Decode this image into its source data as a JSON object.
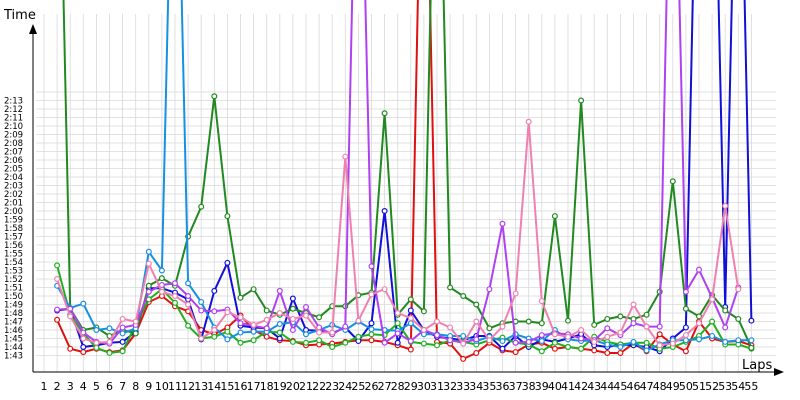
{
  "chart_data": {
    "type": "line",
    "xlabel": "Laps",
    "ylabel": "Time",
    "x": [
      1,
      2,
      3,
      4,
      5,
      6,
      7,
      8,
      9,
      10,
      11,
      12,
      13,
      14,
      15,
      16,
      17,
      18,
      19,
      20,
      21,
      22,
      23,
      24,
      25,
      26,
      27,
      28,
      29,
      30,
      31,
      32,
      33,
      34,
      35,
      36,
      37,
      38,
      39,
      40,
      41,
      42,
      43,
      44,
      45,
      46,
      47,
      48,
      49,
      50,
      51,
      52,
      53,
      54,
      55
    ],
    "x_tick_labels": [
      "1",
      "2",
      "3",
      "4",
      "5",
      "6",
      "7",
      "8",
      "9",
      "10",
      "11",
      "12",
      "13",
      "14",
      "15",
      "16",
      "17",
      "18",
      "19",
      "20",
      "21",
      "22",
      "23",
      "24",
      "25",
      "26",
      "27",
      "28",
      "29",
      "30",
      "31",
      "32",
      "33",
      "34",
      "35",
      "36",
      "37",
      "38",
      "39",
      "40",
      "41",
      "42",
      "43",
      "44",
      "45",
      "46",
      "47",
      "48",
      "49",
      "50",
      "51",
      "52",
      "53",
      "54",
      "55"
    ],
    "y_tick_labels": [
      "1:43",
      "1:44",
      "1:45",
      "1:46",
      "1:47",
      "1:48",
      "1:49",
      "1:50",
      "1:51",
      "1:52",
      "1:53",
      "1:54",
      "1:55",
      "1:56",
      "1:57",
      "1:58",
      "1:59",
      "2:00",
      "2:01",
      "2:02",
      "2:03",
      "2:04",
      "2:05",
      "2:06",
      "2:07",
      "2:08",
      "2:09",
      "2:10",
      "2:11",
      "2:12",
      "2:13"
    ],
    "ylim_seconds": [
      102.5,
      134
    ],
    "grid": true,
    "legend": "none",
    "series": [
      {
        "color": "#e01010",
        "values": [
          null,
          107.2,
          103.8,
          103.4,
          103.8,
          103.4,
          103.6,
          105.6,
          109.3,
          110.0,
          108.8,
          108.2,
          106.0,
          105.5,
          106.3,
          107.7,
          106.0,
          105.2,
          104.8,
          104.7,
          104.2,
          104.3,
          104.4,
          104.6,
          104.8,
          104.8,
          104.6,
          104.2,
          103.7,
          180,
          104.6,
          104.4,
          102.6,
          103.3,
          104.5,
          103.6,
          103.4,
          104.3,
          104.5,
          103.8,
          104.0,
          103.8,
          103.6,
          103.3,
          103.3,
          104.4,
          103.5,
          105.5,
          104.3,
          103.5,
          107.0,
          105.0,
          104.6,
          104.7,
          104.2
        ]
      },
      {
        "color": "#1010d8",
        "values": [
          null,
          108.3,
          108.5,
          104.0,
          104.2,
          104.5,
          104.6,
          105.8,
          110.9,
          110.9,
          110.4,
          109.6,
          104.9,
          110.6,
          113.9,
          106.5,
          106.3,
          106.2,
          105.0,
          109.7,
          106.0,
          105.9,
          105.6,
          106.3,
          104.7,
          106.8,
          120.0,
          104.5,
          108.3,
          106.0,
          105.2,
          105.0,
          104.8,
          105.3,
          105.3,
          103.8,
          105.3,
          104.0,
          104.9,
          104.6,
          105.0,
          105.5,
          104.2,
          104.0,
          104.3,
          104.2,
          104.0,
          103.5,
          105.0,
          106.3,
          180,
          180,
          108.7,
          180,
          107.1
        ]
      },
      {
        "color": "#20b020",
        "values": [
          null,
          113.6,
          107.8,
          105.6,
          103.9,
          103.3,
          103.5,
          106.6,
          109.6,
          110.8,
          109.2,
          106.5,
          105.0,
          105.2,
          105.8,
          104.5,
          104.8,
          105.8,
          105.7,
          104.6,
          104.5,
          104.8,
          104.0,
          104.5,
          105.2,
          105.5,
          105.4,
          106.8,
          104.6,
          104.4,
          104.2,
          104.8,
          104.6,
          104.3,
          104.8,
          105.1,
          104.5,
          104.3,
          103.5,
          104.5,
          104.0,
          103.8,
          105.2,
          104.6,
          104.3,
          104.5,
          104.5,
          103.8,
          104.0,
          104.6,
          105.3,
          107.0,
          104.3,
          104.3,
          103.8
        ]
      },
      {
        "color": "#208a20",
        "values": [
          null,
          180,
          108.5,
          106.0,
          106.3,
          105.3,
          106.0,
          105.6,
          111.2,
          112.1,
          111.2,
          117.0,
          120.5,
          133.5,
          119.4,
          109.8,
          110.8,
          108.3,
          107.8,
          108.5,
          108.0,
          107.5,
          108.8,
          108.8,
          110.1,
          110.4,
          131.5,
          107.8,
          109.6,
          108.2,
          180,
          111.0,
          110.0,
          109.0,
          106.2,
          106.8,
          107.0,
          107.0,
          106.8,
          119.4,
          107.1,
          133.0,
          106.6,
          107.3,
          107.6,
          107.3,
          107.8,
          110.5,
          123.5,
          108.5,
          107.6,
          110.1,
          108.3,
          107.3,
          103.9
        ]
      },
      {
        "color": "#1890e0",
        "values": [
          null,
          111.2,
          108.6,
          109.1,
          106.0,
          106.2,
          105.6,
          106.2,
          115.2,
          113.0,
          180,
          111.5,
          109.3,
          106.3,
          104.9,
          105.7,
          105.8,
          105.8,
          106.7,
          106.9,
          105.5,
          106.0,
          106.6,
          106.0,
          107.0,
          106.1,
          106.0,
          105.9,
          106.8,
          105.5,
          105.5,
          105.3,
          105.3,
          104.7,
          105.2,
          104.7,
          105.5,
          105.0,
          104.7,
          106.0,
          104.9,
          104.7,
          104.8,
          104.3,
          104.0,
          104.6,
          103.6,
          104.3,
          104.8,
          104.8,
          104.9,
          105.3,
          104.6,
          104.8,
          104.8
        ]
      },
      {
        "color": "#b040f0",
        "values": [
          null,
          108.4,
          108.5,
          105.7,
          104.6,
          104.4,
          106.3,
          106.6,
          110.5,
          111.3,
          111.5,
          110.0,
          108.3,
          108.2,
          108.4,
          106.8,
          106.5,
          106.2,
          110.6,
          106.0,
          108.7,
          106.3,
          105.5,
          106.4,
          180,
          113.5,
          104.5,
          105.6,
          104.7,
          106.0,
          105.4,
          104.8,
          104.5,
          104.9,
          110.8,
          118.5,
          104.5,
          104.6,
          105.4,
          105.6,
          105.5,
          105.0,
          104.8,
          106.2,
          105.4,
          106.8,
          106.4,
          106.4,
          180,
          110.5,
          113.1,
          109.8,
          106.3,
          111.0,
          null
        ]
      },
      {
        "color": "#f080b0",
        "values": [
          null,
          112.0,
          107.6,
          105.0,
          104.5,
          104.6,
          107.3,
          107.0,
          113.8,
          110.5,
          110.0,
          109.0,
          105.0,
          106.0,
          108.1,
          107.5,
          106.6,
          107.2,
          108.0,
          107.3,
          107.7,
          105.7,
          105.7,
          126.4,
          107.1,
          110.2,
          110.8,
          108.0,
          107.4,
          106.0,
          107.0,
          106.3,
          104.4,
          107.0,
          104.8,
          106.4,
          110.3,
          130.5,
          109.4,
          105.5,
          105.2,
          106.0,
          104.6,
          105.2,
          105.7,
          109.0,
          106.4,
          104.2,
          104.4,
          105.4,
          106.8,
          109.6,
          120.6,
          110.8,
          null
        ]
      }
    ]
  }
}
